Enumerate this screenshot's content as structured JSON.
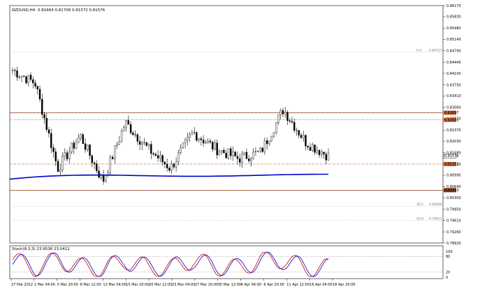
{
  "header": {
    "symbol": "NZDUSD,H4",
    "ohlc": "0.81664 0.81708 0.81572 0.81576"
  },
  "fib_labels": [
    {
      "level": "0.0",
      "price": "0.84757"
    },
    {
      "level": "38.2",
      "price": "0.80046"
    },
    {
      "level": "50.0",
      "price": "0.79611"
    }
  ],
  "price_axis": [
    "0.86170",
    "0.85830",
    "0.85480",
    "0.85140",
    "0.84790",
    "0.84440",
    "0.84100",
    "0.83750",
    "0.83410",
    "0.83060",
    "0.82720",
    "0.82370",
    "0.82030",
    "0.81680",
    "0.81330",
    "0.80990",
    "0.80640",
    "0.80300",
    "0.79950",
    "0.79610",
    "0.79260",
    "0.78920"
  ],
  "price_boxes": [
    "0.82897",
    "0.82681",
    "0.81576",
    "0.81331",
    "0.80533"
  ],
  "time_axis": [
    "27 Feb 2012",
    "1 Mar 04:00",
    "5 Mar 20:00",
    "8 Mar 12:00",
    "13 Mar 04:00",
    "15 Mar 20:00",
    "20 Mar 12:00",
    "23 Mar 04:00",
    "27 Mar 20:00",
    "30 Mar 12:00",
    "4 Apr 04:00",
    "6 Apr 20:00",
    "11 Apr 12:00",
    "16 Apr 04:00",
    "18 Apr 20:00"
  ],
  "stoch": {
    "label": "Stoch(8,3,3) 23.9536 23.0412",
    "axis": [
      "100",
      "80",
      "20",
      "0"
    ]
  },
  "chart_data": {
    "type": "candlestick",
    "x": [
      "27 Feb 2012",
      "1 Mar 04:00",
      "5 Mar 20:00",
      "8 Mar 12:00",
      "13 Mar 04:00",
      "15 Mar 20:00",
      "20 Mar 12:00",
      "23 Mar 04:00",
      "27 Mar 20:00",
      "30 Mar 12:00",
      "4 Apr 04:00",
      "6 Apr 20:00",
      "11 Apr 12:00",
      "16 Apr 04:00",
      "18 Apr 20:00"
    ],
    "close": [
      0.842,
      0.838,
      0.812,
      0.822,
      0.808,
      0.826,
      0.818,
      0.812,
      0.823,
      0.818,
      0.815,
      0.817,
      0.83,
      0.82,
      0.8158
    ],
    "ylim": [
      0.7892,
      0.8617
    ],
    "horizontal_lines": [
      0.82897,
      0.82681,
      0.81331,
      0.80533
    ],
    "moving_average_level": 0.8099,
    "stochastic": {
      "k": [
        85,
        20,
        85,
        30,
        15,
        80,
        25,
        20,
        85,
        30,
        20,
        80,
        85,
        20,
        23.9536
      ],
      "d": [
        80,
        25,
        80,
        35,
        20,
        75,
        30,
        25,
        80,
        35,
        25,
        75,
        80,
        25,
        23.0412
      ],
      "ylim": [
        0,
        100
      ],
      "levels": [
        80,
        20
      ]
    }
  }
}
